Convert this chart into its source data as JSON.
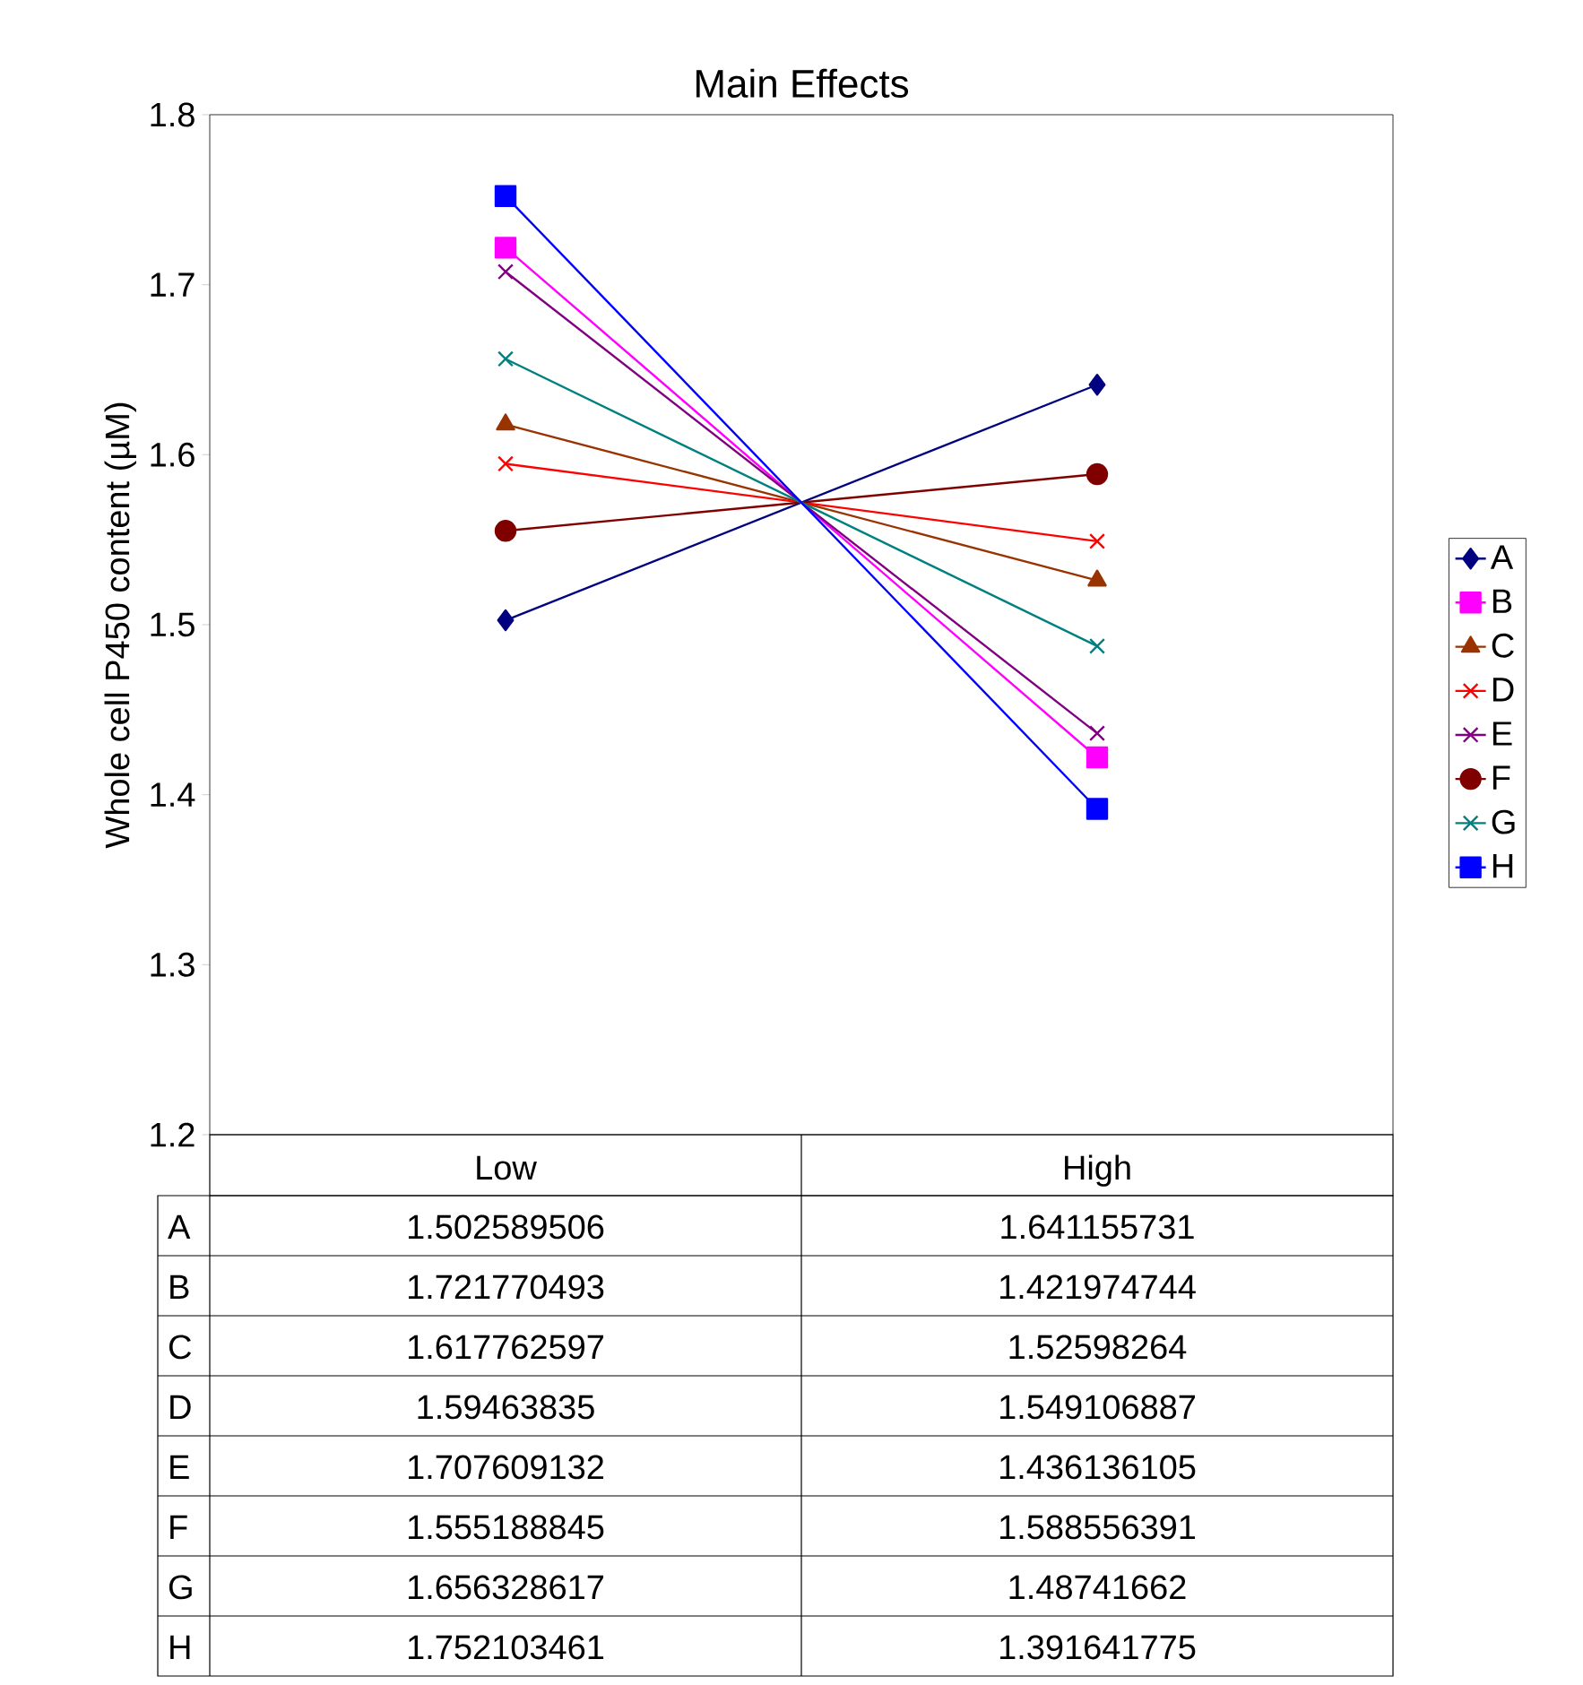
{
  "chart_data": {
    "type": "line",
    "title": "Main Effects",
    "ylabel": "Whole cell P450 content (µM)",
    "categories": [
      "Low",
      "High"
    ],
    "series": [
      {
        "name": "A",
        "color": "#000080",
        "marker": "diamond",
        "values": [
          1.502589506,
          1.641155731
        ]
      },
      {
        "name": "B",
        "color": "#ff00ff",
        "marker": "square",
        "values": [
          1.721770493,
          1.421974744
        ]
      },
      {
        "name": "C",
        "color": "#993300",
        "marker": "triangle",
        "values": [
          1.617762597,
          1.52598264
        ]
      },
      {
        "name": "D",
        "color": "#ff0000",
        "marker": "cross",
        "values": [
          1.59463835,
          1.549106887
        ]
      },
      {
        "name": "E",
        "color": "#800080",
        "marker": "cross",
        "values": [
          1.707609132,
          1.436136105
        ]
      },
      {
        "name": "F",
        "color": "#800000",
        "marker": "circle",
        "values": [
          1.555188845,
          1.588556391
        ]
      },
      {
        "name": "G",
        "color": "#008080",
        "marker": "cross",
        "values": [
          1.656328617,
          1.48741662
        ]
      },
      {
        "name": "H",
        "color": "#0000ff",
        "marker": "square",
        "values": [
          1.752103461,
          1.391641775
        ]
      }
    ],
    "ylim": [
      1.2,
      1.8
    ],
    "yticks": [
      1.2,
      1.3,
      1.4,
      1.5,
      1.6,
      1.7,
      1.8
    ],
    "legend": "right",
    "data_labels": true
  }
}
